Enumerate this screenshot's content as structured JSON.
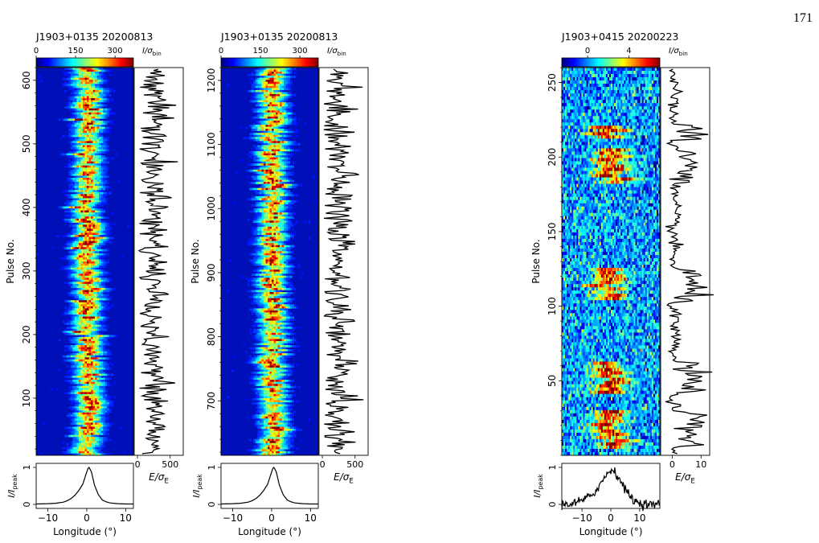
{
  "page_number": "171",
  "colormap": [
    "#00007f",
    "#0000ff",
    "#007fff",
    "#00ffff",
    "#7fff7f",
    "#ffff00",
    "#ff7f00",
    "#ff0000",
    "#7f0000"
  ],
  "chart_data": [
    {
      "type": "heatmap",
      "pulsar": "J1903+0135",
      "date": "20200813",
      "colorbar_label": "I/σ_bin",
      "colorbar_ticks": [
        "0",
        "150",
        "300"
      ],
      "colorbar_range": [
        0,
        370
      ],
      "ylabel": "Pulse No.",
      "ylim": [
        10,
        620
      ],
      "yticks": [
        "100",
        "200",
        "300",
        "400",
        "500",
        "600"
      ],
      "xlabel": "Longitude (°)",
      "xlim": [
        -13,
        12
      ],
      "xticks": [
        "−10",
        "0",
        "10"
      ],
      "profile_ylabel": "I/I_peak",
      "profile_yticks": [
        "0",
        "1"
      ],
      "energy_label": "E/σ_E",
      "energy_xlim": [
        -50,
        700
      ],
      "energy_ticks": [
        "0",
        "500"
      ],
      "energy_mean": 250,
      "noise_level": 0.08,
      "pulse_center": 0.3,
      "pulse_width": 3,
      "profile_curve": [
        [
          -13,
          0.01
        ],
        [
          -10,
          0.02
        ],
        [
          -8,
          0.03
        ],
        [
          -6,
          0.06
        ],
        [
          -5,
          0.1
        ],
        [
          -4,
          0.16
        ],
        [
          -3,
          0.25
        ],
        [
          -2,
          0.38
        ],
        [
          -1,
          0.55
        ],
        [
          -0.3,
          0.78
        ],
        [
          0.3,
          0.97
        ],
        [
          0.6,
          1.0
        ],
        [
          1.2,
          0.88
        ],
        [
          2,
          0.52
        ],
        [
          3,
          0.26
        ],
        [
          4,
          0.12
        ],
        [
          5,
          0.07
        ],
        [
          6,
          0.04
        ],
        [
          8,
          0.02
        ],
        [
          10,
          0.01
        ],
        [
          12,
          0.01
        ]
      ]
    },
    {
      "type": "heatmap",
      "pulsar": "J1903+0135",
      "date": "20200813",
      "colorbar_label": "I/σ_bin",
      "colorbar_ticks": [
        "0",
        "150",
        "300"
      ],
      "colorbar_range": [
        0,
        370
      ],
      "ylabel": "Pulse No.",
      "ylim": [
        615,
        1220
      ],
      "yticks": [
        "700",
        "800",
        "900",
        "1000",
        "1100",
        "1200"
      ],
      "xlabel": "Longitude (°)",
      "xlim": [
        -13,
        12
      ],
      "xticks": [
        "−10",
        "0",
        "10"
      ],
      "profile_ylabel": "I/I_peak",
      "profile_yticks": [
        "0",
        "1"
      ],
      "energy_label": "E/σ_E",
      "energy_xlim": [
        -50,
        700
      ],
      "energy_ticks": [
        "0",
        "500"
      ],
      "energy_mean": 250,
      "noise_level": 0.08,
      "pulse_center": 0.3,
      "pulse_width": 3,
      "profile_curve": [
        [
          -13,
          0.01
        ],
        [
          -10,
          0.02
        ],
        [
          -8,
          0.03
        ],
        [
          -6,
          0.06
        ],
        [
          -5,
          0.1
        ],
        [
          -4,
          0.16
        ],
        [
          -3,
          0.25
        ],
        [
          -2,
          0.38
        ],
        [
          -1,
          0.55
        ],
        [
          -0.3,
          0.78
        ],
        [
          0.3,
          0.97
        ],
        [
          0.6,
          1.0
        ],
        [
          1.2,
          0.88
        ],
        [
          2,
          0.52
        ],
        [
          3,
          0.26
        ],
        [
          4,
          0.12
        ],
        [
          5,
          0.07
        ],
        [
          6,
          0.04
        ],
        [
          8,
          0.02
        ],
        [
          10,
          0.01
        ],
        [
          12,
          0.01
        ]
      ]
    },
    {
      "type": "heatmap",
      "pulsar": "J1903+0415",
      "date": "20200223",
      "colorbar_label": "I/σ_bin",
      "colorbar_ticks": [
        "0",
        "4"
      ],
      "colorbar_range": [
        -2.5,
        7
      ],
      "ylabel": "Pulse No.",
      "ylim": [
        0,
        260
      ],
      "yticks": [
        "50",
        "100",
        "150",
        "200",
        "250"
      ],
      "xlabel": "Longitude (°)",
      "xlim": [
        -17,
        17
      ],
      "xticks": [
        "−10",
        "0",
        "10"
      ],
      "profile_ylabel": "I/I_peak",
      "profile_yticks": [
        "0",
        "1"
      ],
      "energy_label": "E/σ_E",
      "energy_xlim": [
        -4,
        13
      ],
      "energy_ticks": [
        "0",
        "10"
      ],
      "energy_mean": 1,
      "noise_level": 0.25,
      "pulse_center": 0,
      "pulse_width": 5,
      "on_ranges": [
        [
          5,
          30
        ],
        [
          42,
          62
        ],
        [
          103,
          125
        ],
        [
          183,
          205
        ],
        [
          212,
          222
        ]
      ],
      "profile_curve": [
        [
          -17,
          0.0
        ],
        [
          -14,
          0.02
        ],
        [
          -12,
          0.05
        ],
        [
          -10,
          0.1
        ],
        [
          -8,
          0.18
        ],
        [
          -6,
          0.3
        ],
        [
          -4,
          0.5
        ],
        [
          -2,
          0.75
        ],
        [
          0,
          0.95
        ],
        [
          1,
          0.9
        ],
        [
          2,
          0.82
        ],
        [
          4,
          0.55
        ],
        [
          6,
          0.28
        ],
        [
          8,
          0.1
        ],
        [
          10,
          0.04
        ],
        [
          13,
          0.0
        ],
        [
          17,
          0.0
        ]
      ]
    }
  ]
}
